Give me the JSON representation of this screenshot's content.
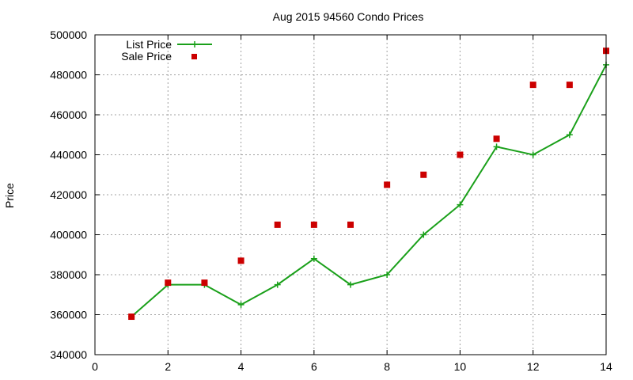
{
  "chart_data": {
    "type": "line",
    "title": "Aug 2015 94560 Condo Prices",
    "xlabel": "",
    "ylabel": "Price",
    "xlim": [
      0,
      14
    ],
    "ylim": [
      340000,
      500000
    ],
    "xticks": [
      0,
      2,
      4,
      6,
      8,
      10,
      12,
      14
    ],
    "yticks": [
      340000,
      360000,
      380000,
      400000,
      420000,
      440000,
      460000,
      480000,
      500000
    ],
    "grid": true,
    "legend_position": "top-left",
    "series": [
      {
        "name": "List Price",
        "style": "line-plus",
        "color": "#1aa01a",
        "x": [
          1,
          2,
          3,
          4,
          5,
          6,
          7,
          8,
          9,
          10,
          11,
          12,
          13,
          14
        ],
        "y": [
          359000,
          375000,
          375000,
          365000,
          375000,
          388000,
          375000,
          380000,
          400000,
          415000,
          444000,
          440000,
          450000,
          485000
        ]
      },
      {
        "name": "Sale Price",
        "style": "square-points",
        "color": "#cc0000",
        "x": [
          1,
          2,
          3,
          4,
          5,
          6,
          7,
          8,
          9,
          10,
          11,
          12,
          13,
          14
        ],
        "y": [
          359000,
          376000,
          376000,
          387000,
          405000,
          405000,
          405000,
          425000,
          430000,
          440000,
          448000,
          475000,
          475000,
          492000
        ]
      }
    ]
  }
}
